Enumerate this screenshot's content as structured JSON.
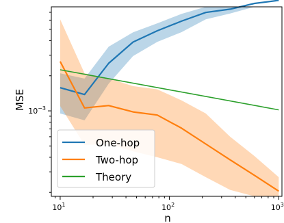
{
  "chart_data": {
    "type": "line",
    "title": "",
    "xlabel": "n",
    "ylabel": "MSE",
    "xscale": "log",
    "yscale": "log",
    "xlim": [
      8.3,
      1070
    ],
    "ylim": [
      0.000185,
      0.0078
    ],
    "grid": false,
    "legend": "lower-left",
    "x_ticks": [
      {
        "value": 10,
        "base": "10",
        "exp": "1"
      },
      {
        "value": 100,
        "base": "10",
        "exp": "2"
      },
      {
        "value": 1000,
        "base": "10",
        "exp": "3"
      }
    ],
    "y_ticks": [
      {
        "value": 0.001,
        "base": "10",
        "exp": "−3"
      }
    ],
    "series": [
      {
        "name": "One-hop",
        "color": "#1f77b4",
        "x": [
          10,
          16.7,
          27.8,
          46.4,
          77.4,
          129,
          215,
          359,
          599,
          1000
        ],
        "y": [
          0.00158,
          0.00138,
          0.00256,
          0.00389,
          0.00486,
          0.00588,
          0.00698,
          0.00745,
          0.00835,
          0.00887
        ],
        "lower": [
          0.00095,
          0.00083,
          0.00171,
          0.00295,
          0.0039,
          0.00473,
          0.00609,
          0.00684,
          0.00789,
          0.00845
        ],
        "upper": [
          0.0021,
          0.00189,
          0.00355,
          0.00471,
          0.00563,
          0.00679,
          0.00781,
          0.00805,
          0.00873,
          0.00934
        ]
      },
      {
        "name": "Two-hop",
        "color": "#ff7f0e",
        "x": [
          10,
          16.7,
          27.8,
          46.4,
          77.4,
          129,
          215,
          359,
          599,
          1000
        ],
        "y": [
          0.00265,
          0.00106,
          0.00111,
          0.00098,
          0.00092,
          0.00071,
          0.00052,
          0.00038,
          0.00028,
          0.000205
        ],
        "lower": [
          0.0011,
          0.00051,
          0.00052,
          0.00045,
          0.0004,
          0.00035,
          0.00027,
          0.00021,
          0.00017,
          0.000162
        ],
        "upper": [
          0.0061,
          0.0021,
          0.0019,
          0.00163,
          0.00153,
          0.00123,
          0.00095,
          0.0006,
          0.00041,
          0.00027
        ]
      },
      {
        "name": "Theory",
        "color": "#2ca02c",
        "x": [
          10,
          1000
        ],
        "y": [
          0.00225,
          0.00102
        ]
      }
    ]
  }
}
